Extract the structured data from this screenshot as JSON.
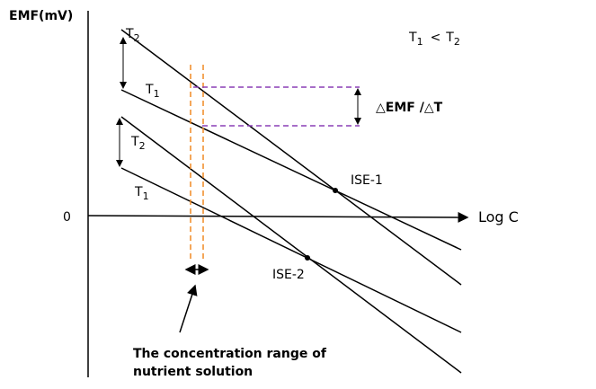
{
  "axes": {
    "y_label": "EMF(mV)",
    "origin": "0",
    "x_label": "Log C"
  },
  "temperature_labels": [
    {
      "symbol": "T",
      "subscript": "2"
    },
    {
      "symbol": "T",
      "subscript": "1"
    },
    {
      "symbol": "T",
      "subscript": "2"
    },
    {
      "symbol": "T",
      "subscript": "1"
    }
  ],
  "condition": {
    "left": {
      "symbol": "T",
      "subscript": "1"
    },
    "operator": "<",
    "right": {
      "symbol": "T",
      "subscript": "2"
    }
  },
  "delta_label": "△EMF /△T",
  "sensors": [
    "ISE-1",
    "ISE-2"
  ],
  "note": {
    "lines": [
      "The concentration range of",
      "nutrient solution"
    ]
  }
}
